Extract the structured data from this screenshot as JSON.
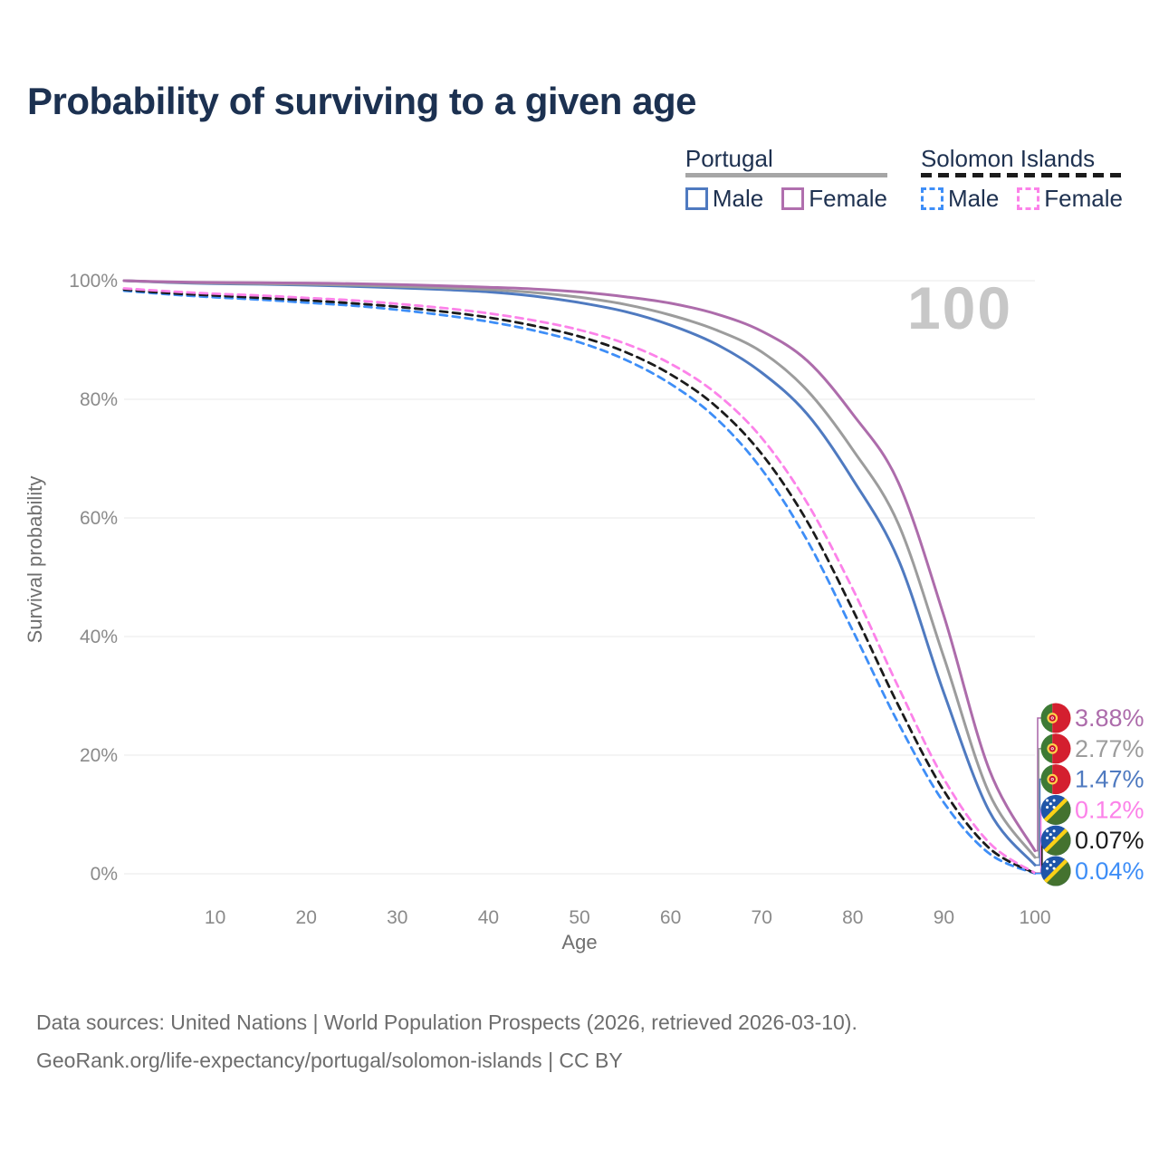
{
  "title": "Probability of surviving to a given age",
  "watermark": "100",
  "legend": {
    "groups": [
      {
        "title": "Portugal",
        "line_style": "solid",
        "underline_color": "#a6a6a6",
        "items": [
          {
            "label": "Male",
            "color": "#4f7ac0"
          },
          {
            "label": "Female",
            "color": "#b06fae"
          }
        ]
      },
      {
        "title": "Solomon Islands",
        "line_style": "dashed",
        "underline_color": "#1b1b1b",
        "items": [
          {
            "label": "Male",
            "color": "#3e8ef7"
          },
          {
            "label": "Female",
            "color": "#fc82e9"
          }
        ]
      }
    ]
  },
  "chart_data": {
    "type": "line",
    "title": "Probability of surviving to a given age",
    "xlabel": "Age",
    "ylabel": "Survival probability",
    "xlim": [
      0,
      100
    ],
    "ylim": [
      0,
      100
    ],
    "grid": "horizontal-only",
    "x_ticks": [
      10,
      20,
      30,
      40,
      50,
      60,
      70,
      80,
      90,
      100
    ],
    "y_ticks": [
      {
        "v": 0,
        "label": "0%"
      },
      {
        "v": 20,
        "label": "20%"
      },
      {
        "v": 40,
        "label": "40%"
      },
      {
        "v": 60,
        "label": "60%"
      },
      {
        "v": 80,
        "label": "80%"
      },
      {
        "v": 100,
        "label": "100%"
      }
    ],
    "x": [
      0,
      5,
      10,
      15,
      20,
      25,
      30,
      35,
      40,
      45,
      50,
      55,
      60,
      65,
      70,
      75,
      80,
      85,
      90,
      95,
      100
    ],
    "series": [
      {
        "name": "Portugal Female",
        "country": "Portugal",
        "sex": "Female",
        "flag": "portugal",
        "color": "#ad6cab",
        "dash": "solid",
        "end_label": "3.88%",
        "values": [
          100,
          99.8,
          99.7,
          99.65,
          99.6,
          99.5,
          99.35,
          99.15,
          98.9,
          98.6,
          98.1,
          97.3,
          96.2,
          94.4,
          91.5,
          86.5,
          77.5,
          66,
          43.5,
          17.5,
          3.88
        ]
      },
      {
        "name": "Portugal Both sexes",
        "country": "Portugal",
        "sex": "Both sexes",
        "flag": "portugal",
        "color": "#9c9c9c",
        "dash": "solid",
        "end_label": "2.77%",
        "values": [
          100,
          99.75,
          99.6,
          99.5,
          99.4,
          99.25,
          99.05,
          98.8,
          98.5,
          98,
          97.2,
          96,
          94.2,
          91.7,
          88,
          81.5,
          71.5,
          59,
          36.5,
          13.5,
          2.77
        ]
      },
      {
        "name": "Portugal Male",
        "country": "Portugal",
        "sex": "Male",
        "flag": "portugal",
        "color": "#4f7ac0",
        "dash": "solid",
        "end_label": "1.47%",
        "values": [
          100,
          99.7,
          99.5,
          99.4,
          99.25,
          99.05,
          98.8,
          98.5,
          98.1,
          97.4,
          96.3,
          94.8,
          92.5,
          89.3,
          84.5,
          77.5,
          66.5,
          53,
          30.5,
          10.5,
          1.47
        ]
      },
      {
        "name": "Solomon Islands Female",
        "country": "Solomon Islands",
        "sex": "Female",
        "flag": "solomon-islands",
        "color": "#fc82e9",
        "dash": "dashed",
        "end_label": "0.12%",
        "values": [
          98.7,
          98.2,
          97.8,
          97.5,
          97.1,
          96.7,
          96.1,
          95.4,
          94.5,
          93.3,
          91.7,
          89.4,
          86,
          81,
          73.5,
          62.5,
          48,
          31.5,
          16,
          5.2,
          0.12
        ]
      },
      {
        "name": "Solomon Islands Both sexes",
        "country": "Solomon Islands",
        "sex": "Both sexes",
        "flag": "solomon-islands",
        "color": "#1b1b1b",
        "dash": "dashed",
        "end_label": "0.07%",
        "values": [
          98.5,
          97.9,
          97.5,
          97.1,
          96.7,
          96.2,
          95.6,
          94.8,
          93.8,
          92.4,
          90.6,
          88,
          84.2,
          78.8,
          70.8,
          59.4,
          44.5,
          28.4,
          14,
          4.3,
          0.07
        ]
      },
      {
        "name": "Solomon Islands Male",
        "country": "Solomon Islands",
        "sex": "Male",
        "flag": "solomon-islands",
        "color": "#3e8ef7",
        "dash": "dashed",
        "end_label": "0.04%",
        "values": [
          98.3,
          97.7,
          97.2,
          96.8,
          96.3,
          95.8,
          95.1,
          94.2,
          93.1,
          91.6,
          89.6,
          86.7,
          82.6,
          76.8,
          68.2,
          56.2,
          41,
          25.4,
          12,
          3.4,
          0.04
        ]
      }
    ]
  },
  "source": {
    "line1": "Data sources: United Nations | World Population Prospects (2026, retrieved 2026-03-10).",
    "line2": "GeoRank.org/life-expectancy/portugal/solomon-islands | CC BY"
  }
}
